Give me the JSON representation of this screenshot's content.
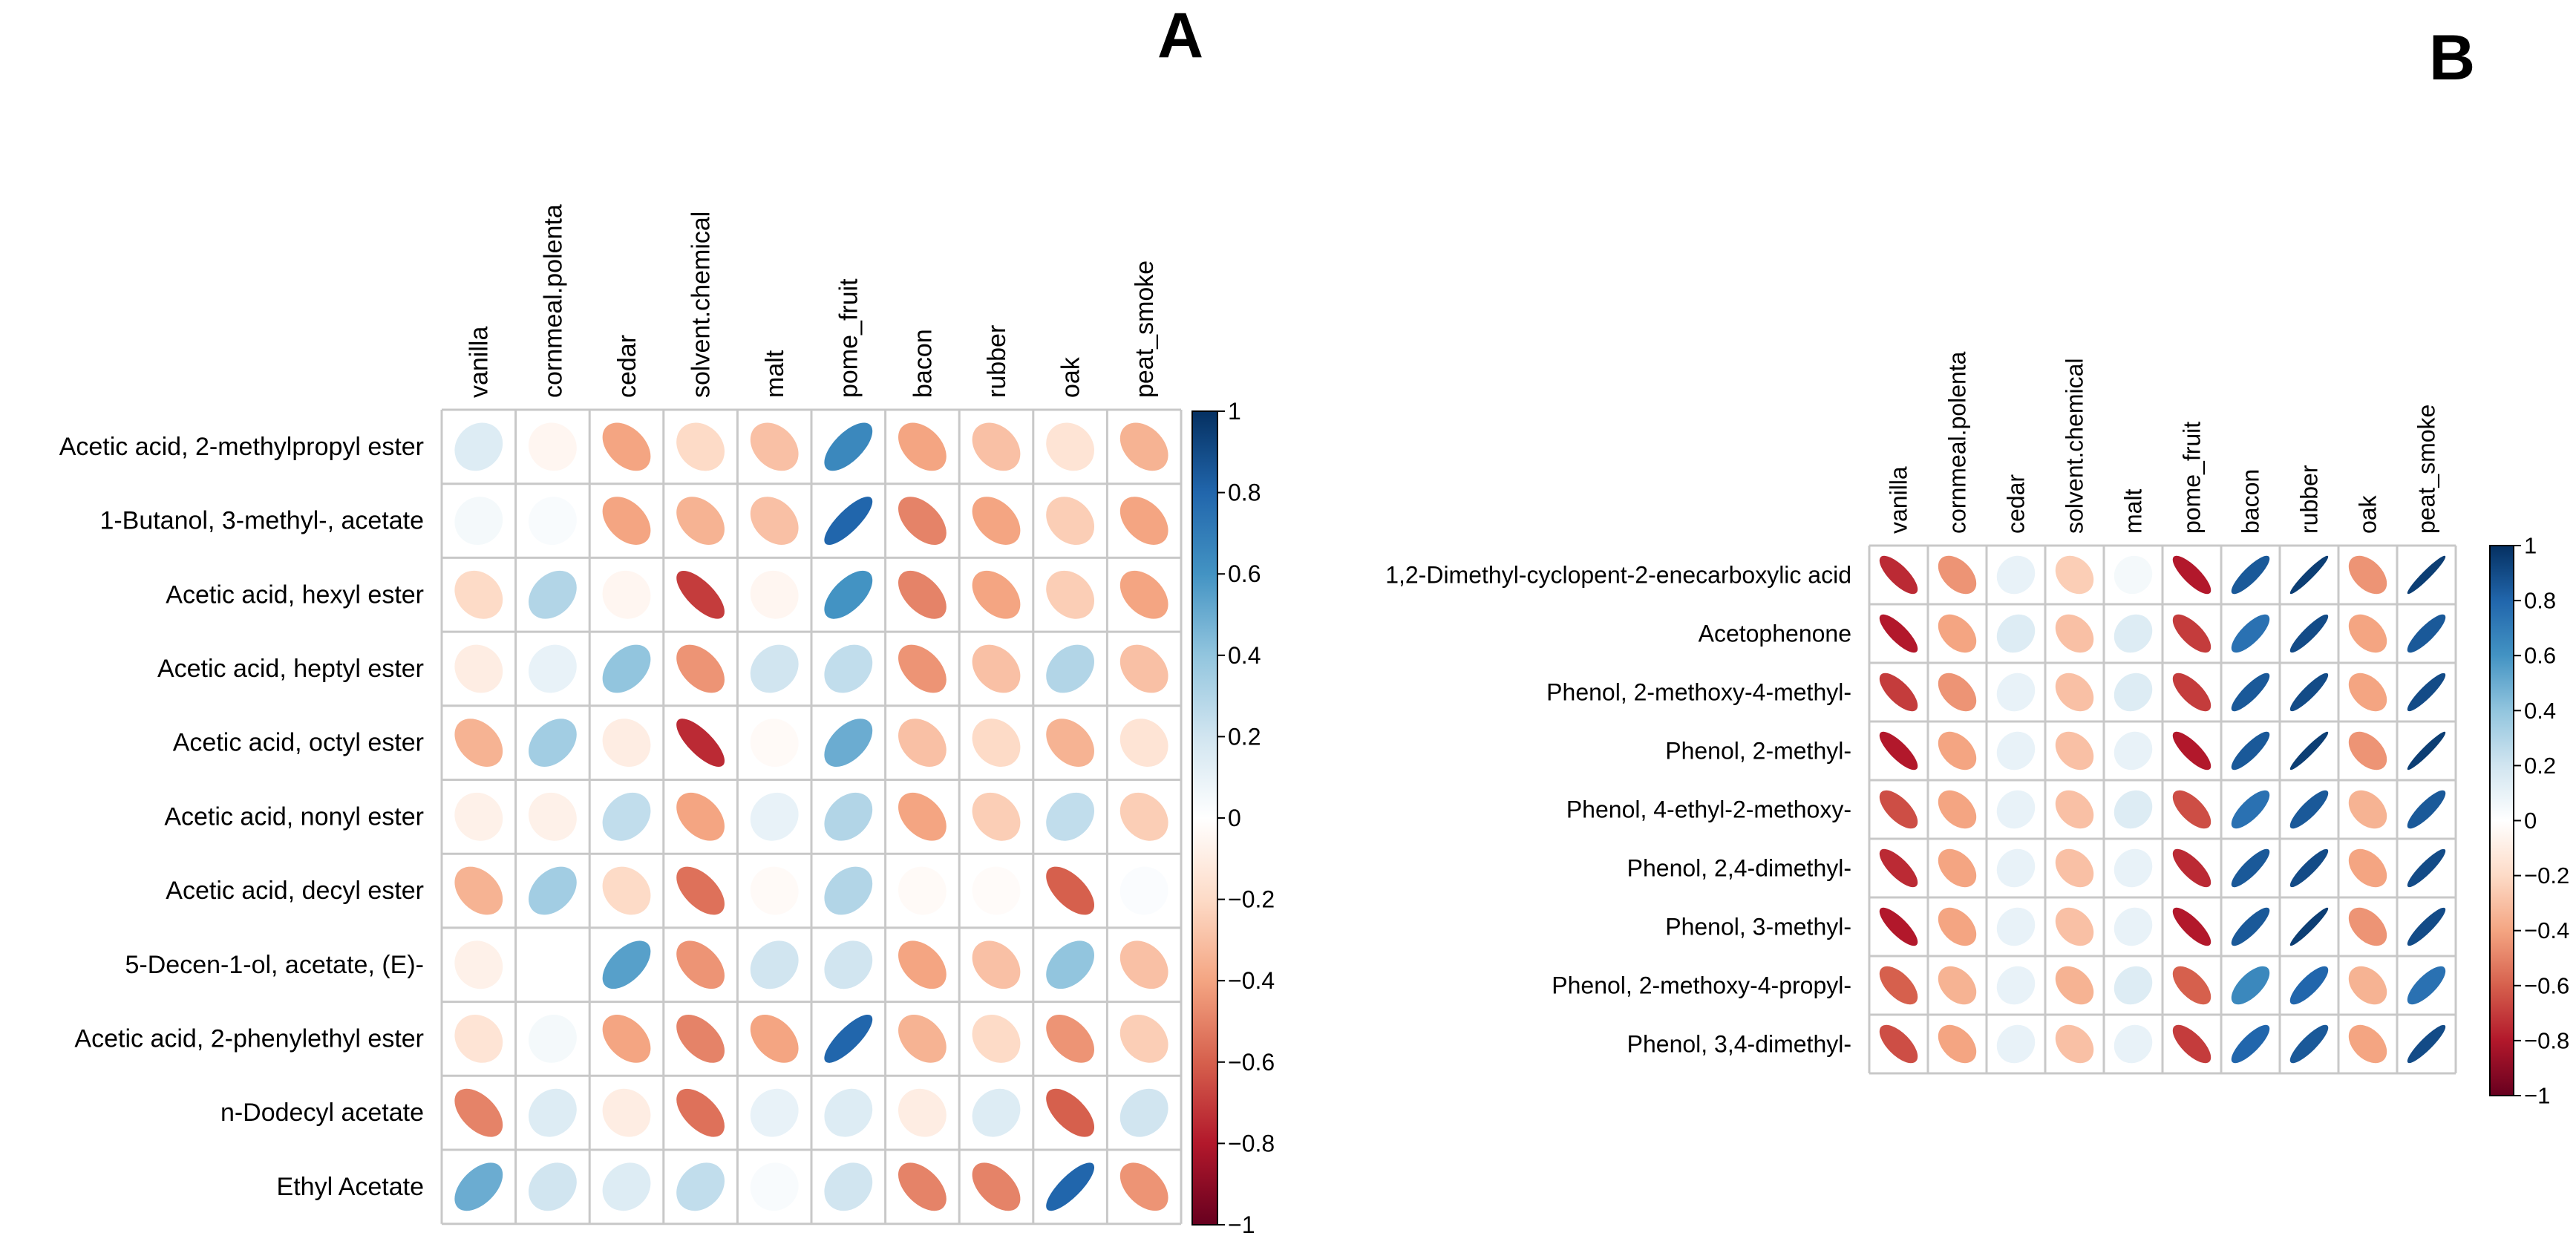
{
  "panels": [
    {
      "id": "A",
      "letter": "A",
      "chart_data": {
        "type": "heatmap",
        "title": "",
        "xlabel": "",
        "ylabel": "",
        "glyph": "ellipse",
        "columns": [
          "vanilla",
          "cornmeal.polenta",
          "cedar",
          "solvent.chemical",
          "malt",
          "pome_fruit",
          "bacon",
          "rubber",
          "oak",
          "peat_smoke"
        ],
        "rows": [
          "Acetic acid, 2-methylpropyl ester",
          "1-Butanol, 3-methyl-, acetate",
          "Acetic acid, hexyl ester",
          "Acetic acid, heptyl ester",
          "Acetic acid, octyl ester",
          "Acetic acid, nonyl ester",
          "Acetic acid, decyl ester",
          "5-Decen-1-ol, acetate, (E)-",
          "Acetic acid, 2-phenylethyl ester",
          "n-Dodecyl acetate",
          "Ethyl Acetate"
        ],
        "values": [
          [
            0.15,
            -0.05,
            -0.4,
            -0.2,
            -0.3,
            0.65,
            -0.4,
            -0.3,
            -0.15,
            -0.35
          ],
          [
            0.05,
            0.03,
            -0.4,
            -0.35,
            -0.3,
            0.8,
            -0.5,
            -0.4,
            -0.25,
            -0.4
          ],
          [
            -0.2,
            0.3,
            -0.05,
            -0.7,
            -0.05,
            0.6,
            -0.5,
            -0.4,
            -0.25,
            -0.4
          ],
          [
            -0.1,
            0.1,
            0.4,
            -0.45,
            0.2,
            0.25,
            -0.45,
            -0.3,
            0.3,
            -0.3
          ],
          [
            -0.35,
            0.35,
            -0.1,
            -0.75,
            -0.03,
            0.5,
            -0.3,
            -0.2,
            -0.35,
            -0.15
          ],
          [
            -0.08,
            -0.08,
            0.25,
            -0.4,
            0.1,
            0.3,
            -0.4,
            -0.25,
            0.25,
            -0.25
          ],
          [
            -0.35,
            0.35,
            -0.2,
            -0.55,
            -0.03,
            0.3,
            -0.03,
            -0.02,
            -0.6,
            0.02
          ],
          [
            -0.08,
            0.0,
            0.55,
            -0.45,
            0.2,
            0.2,
            -0.4,
            -0.3,
            0.4,
            -0.3
          ],
          [
            -0.15,
            0.05,
            -0.4,
            -0.5,
            -0.4,
            0.8,
            -0.35,
            -0.2,
            -0.45,
            -0.25
          ],
          [
            -0.5,
            0.15,
            -0.1,
            -0.55,
            0.1,
            0.15,
            -0.1,
            0.15,
            -0.6,
            0.2
          ],
          [
            0.5,
            0.2,
            0.15,
            0.25,
            0.03,
            0.2,
            -0.5,
            -0.5,
            0.8,
            -0.45
          ]
        ],
        "colorbar_ticks": [
          "1",
          "0.8",
          "0.6",
          "0.4",
          "0.2",
          "0",
          "−0.2",
          "−0.4",
          "−0.6",
          "−0.8",
          "−1"
        ],
        "colorbar_range": [
          -1,
          1
        ]
      }
    },
    {
      "id": "B",
      "letter": "B",
      "chart_data": {
        "type": "heatmap",
        "title": "",
        "xlabel": "",
        "ylabel": "",
        "glyph": "ellipse",
        "columns": [
          "vanilla",
          "cornmeal.polenta",
          "cedar",
          "solvent.chemical",
          "malt",
          "pome_fruit",
          "bacon",
          "rubber",
          "oak",
          "peat_smoke"
        ],
        "rows": [
          "1,2-Dimethyl-cyclopent-2-enecarboxylic acid",
          "Acetophenone",
          "Phenol, 2-methoxy-4-methyl-",
          "Phenol, 2-methyl-",
          "Phenol, 4-ethyl-2-methoxy-",
          "Phenol, 2,4-dimethyl-",
          "Phenol, 3-methyl-",
          "Phenol, 2-methoxy-4-propyl-",
          "Phenol, 3,4-dimethyl-"
        ],
        "values": [
          [
            -0.75,
            -0.45,
            0.1,
            -0.25,
            0.05,
            -0.8,
            0.85,
            0.95,
            -0.45,
            0.95
          ],
          [
            -0.8,
            -0.4,
            0.15,
            -0.3,
            0.15,
            -0.7,
            0.75,
            0.9,
            -0.4,
            0.85
          ],
          [
            -0.7,
            -0.45,
            0.1,
            -0.3,
            0.15,
            -0.7,
            0.85,
            0.9,
            -0.4,
            0.9
          ],
          [
            -0.8,
            -0.4,
            0.1,
            -0.3,
            0.1,
            -0.8,
            0.85,
            0.95,
            -0.45,
            0.95
          ],
          [
            -0.65,
            -0.4,
            0.1,
            -0.3,
            0.15,
            -0.65,
            0.75,
            0.85,
            -0.35,
            0.85
          ],
          [
            -0.75,
            -0.4,
            0.1,
            -0.3,
            0.1,
            -0.75,
            0.85,
            0.9,
            -0.4,
            0.9
          ],
          [
            -0.8,
            -0.4,
            0.1,
            -0.3,
            0.1,
            -0.8,
            0.85,
            0.95,
            -0.45,
            0.9
          ],
          [
            -0.6,
            -0.35,
            0.1,
            -0.35,
            0.15,
            -0.6,
            0.65,
            0.8,
            -0.35,
            0.75
          ],
          [
            -0.65,
            -0.4,
            0.1,
            -0.3,
            0.1,
            -0.7,
            0.8,
            0.85,
            -0.4,
            0.9
          ]
        ],
        "colorbar_ticks": [
          "1",
          "0.8",
          "0.6",
          "0.4",
          "0.2",
          "0",
          "−0.2",
          "−0.4",
          "−0.6",
          "−0.8",
          "−1"
        ],
        "colorbar_range": [
          -1,
          1
        ]
      }
    }
  ]
}
